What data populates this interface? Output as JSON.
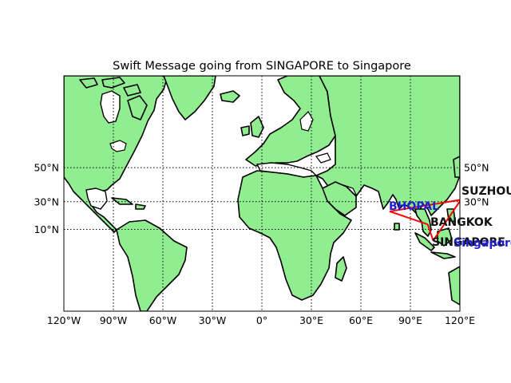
{
  "title": "Swift Message going from SINGAPORE to Singapore",
  "colors": {
    "land": "#90ee90",
    "ocean": "#ffffff",
    "route": "#ff0000",
    "label_primary": "#111111",
    "label_highlight": "#1f1fd8"
  },
  "map": {
    "projection": "mercator",
    "lon_range": [
      -120,
      120
    ],
    "lat_range": [
      -47,
      78
    ],
    "meridian_labels": [
      "120°W",
      "90°W",
      "60°W",
      "30°W",
      "0°",
      "30°E",
      "60°E",
      "90°E",
      "120°E"
    ],
    "meridians": [
      -120,
      -90,
      -60,
      -30,
      0,
      30,
      60,
      90,
      120
    ],
    "parallel_labels": [
      "10°N",
      "30°N",
      "50°N"
    ],
    "parallels": [
      10,
      30,
      50
    ],
    "right_parallel_labels": [
      "30°N",
      "50°N"
    ]
  },
  "route": {
    "points": [
      {
        "name": "SINGAPORE",
        "lon": 103.8,
        "lat": 1.3
      },
      {
        "name": "BANGKOK",
        "lon": 100.5,
        "lat": 13.8
      },
      {
        "name": "BHOPAL",
        "lon": 77.4,
        "lat": 23.3
      },
      {
        "name": "SUZHOU",
        "lon": 120.6,
        "lat": 31.3
      },
      {
        "name": "Singapore",
        "lon": 103.8,
        "lat": 1.3
      }
    ]
  },
  "labels": {
    "suzhou": "SUZHOU",
    "bhopal": "BHOPAL",
    "bangkok": "BANGKOK",
    "singapore_origin": "SINGAPORE",
    "singapore_dest": "Singapore"
  }
}
